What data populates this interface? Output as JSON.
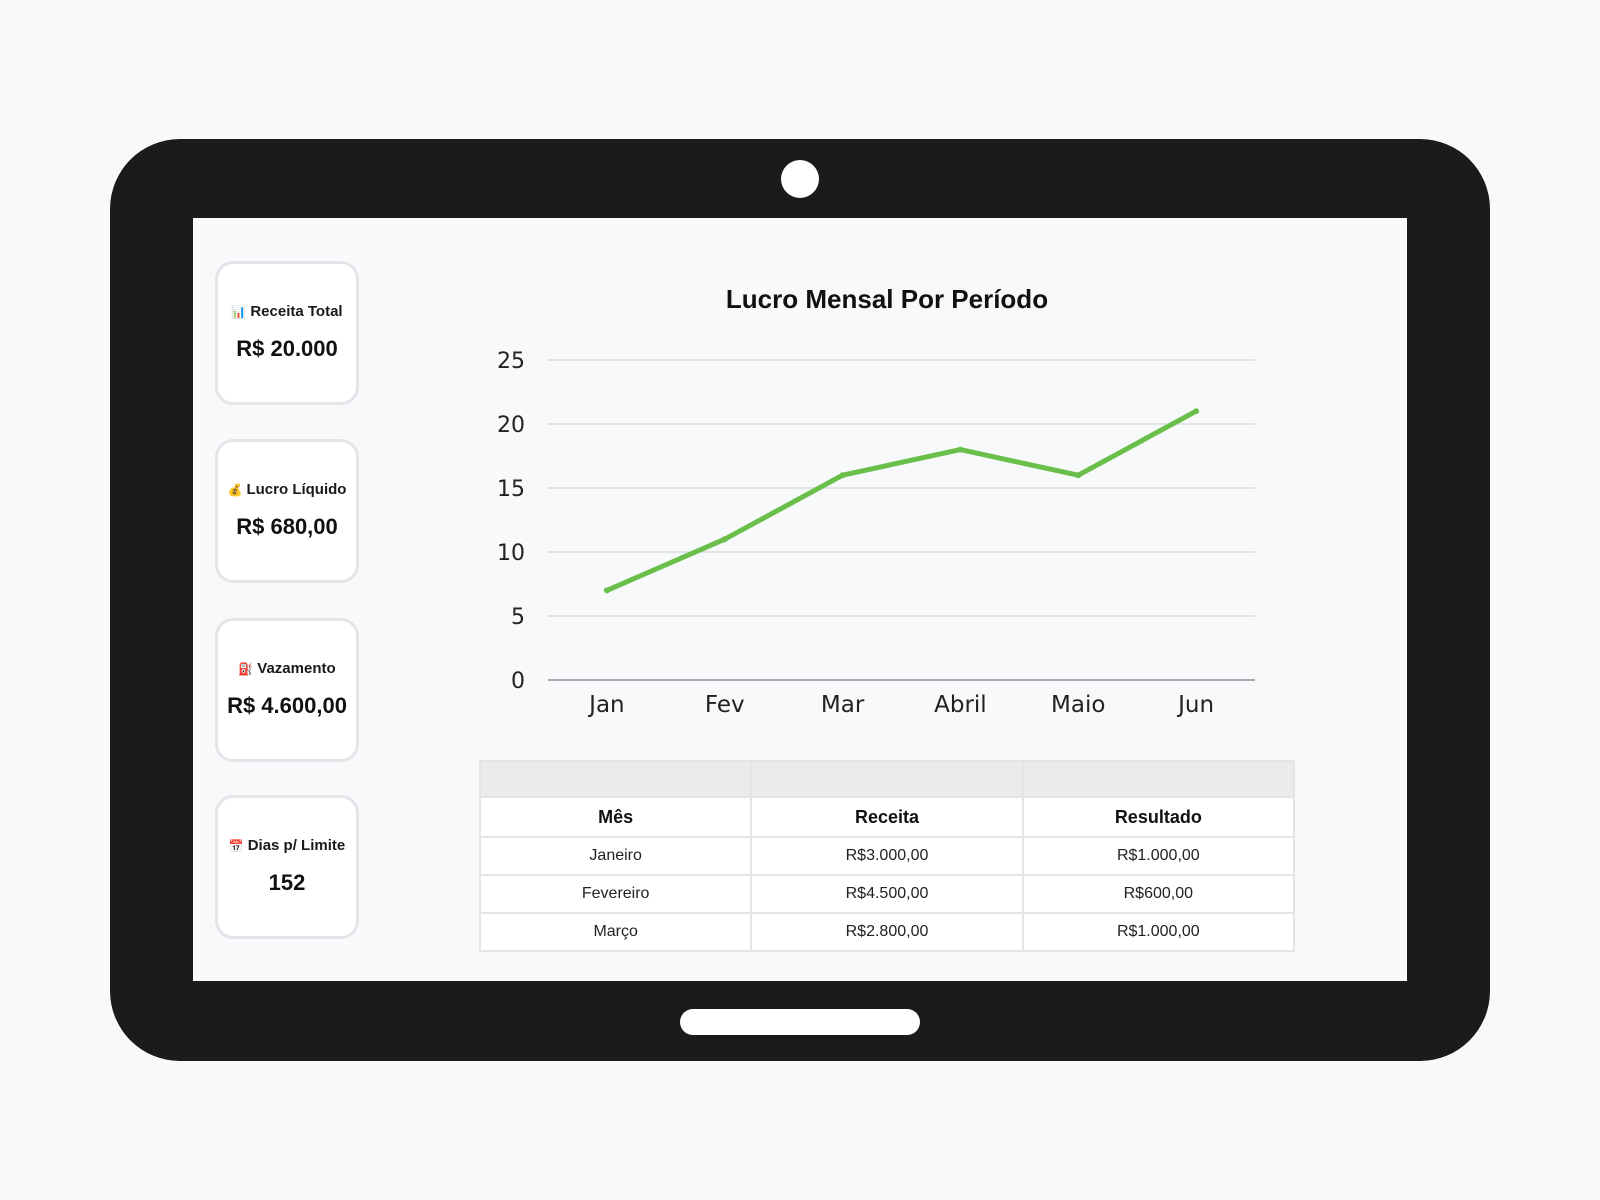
{
  "kpis": [
    {
      "icon": "bar-chart-icon",
      "glyph": "📊",
      "label": "Receita Total",
      "value": "R$ 20.000"
    },
    {
      "icon": "money-bag-icon",
      "glyph": "💰",
      "label": "Lucro Líquido",
      "value": "R$ 680,00"
    },
    {
      "icon": "fuel-pump-icon",
      "glyph": "⛽",
      "label": "Vazamento",
      "value": "R$ 4.600,00"
    },
    {
      "icon": "calendar-icon",
      "glyph": "📅",
      "label": "Dias p/ Limite",
      "value": "152"
    }
  ],
  "colors": {
    "line": "#6abf4b",
    "grid": "#d6d9dc",
    "axis": "#a9acb0"
  },
  "chart_data": {
    "type": "line",
    "title": "Lucro Mensal Por Período",
    "categories": [
      "Jan",
      "Fev",
      "Mar",
      "Abril",
      "Maio",
      "Jun"
    ],
    "series": [
      {
        "values": [
          7,
          11,
          16,
          18,
          16,
          21
        ]
      }
    ],
    "yticks": [
      "0",
      "5",
      "10",
      "15",
      "20",
      "25"
    ],
    "ylim": [
      0,
      25
    ],
    "grid": true,
    "xlabel": "",
    "ylabel": ""
  },
  "table": {
    "headers": [
      "Mês",
      "Receita",
      "Resultado"
    ],
    "rows": [
      [
        "Janeiro",
        "R$3.000,00",
        "R$1.000,00"
      ],
      [
        "Fevereiro",
        "R$4.500,00",
        "R$600,00"
      ],
      [
        "Março",
        "R$2.800,00",
        "R$1.000,00"
      ]
    ]
  }
}
